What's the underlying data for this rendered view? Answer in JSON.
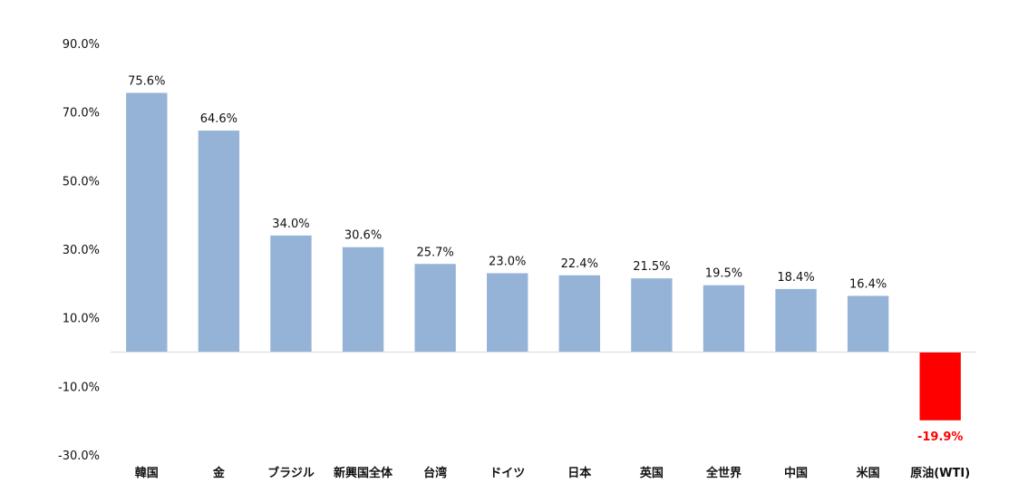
{
  "chart_data": {
    "type": "bar",
    "categories": [
      "韓国",
      "金",
      "ブラジル",
      "新興国全体",
      "台湾",
      "ドイツ",
      "日本",
      "英国",
      "全世界",
      "中国",
      "米国",
      "原油(WTI)"
    ],
    "values": [
      75.6,
      64.6,
      34.0,
      30.6,
      25.7,
      23.0,
      22.4,
      21.5,
      19.5,
      18.4,
      16.4,
      -19.9
    ],
    "data_labels": [
      "75.6%",
      "64.6%",
      "34.0%",
      "30.6%",
      "25.7%",
      "23.0%",
      "22.4%",
      "21.5%",
      "19.5%",
      "18.4%",
      "16.4%",
      "-19.9%"
    ],
    "y_ticks": [
      90,
      70,
      50,
      30,
      10,
      -10,
      -30
    ],
    "y_tick_labels": [
      "90.0%",
      "70.0%",
      "50.0%",
      "30.0%",
      "10.0%",
      "-10.0%",
      "-30.0%"
    ],
    "ylim": [
      -30,
      90
    ],
    "title": "",
    "xlabel": "",
    "ylabel": "",
    "grid": false,
    "legend": "none",
    "colors": {
      "positive": "#95B3D7",
      "negative": "#FF0000",
      "negative_label": "#FF0000",
      "axis": "#D9D9D9",
      "text": "#111111"
    }
  }
}
